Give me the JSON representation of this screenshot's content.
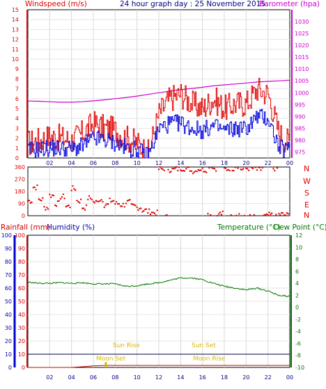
{
  "header": {
    "wind_label": "Windspeed (m/s)",
    "title": "24 hour graph day : 25 November 2015",
    "baro_label": "Barometer (hpa)"
  },
  "axes": {
    "wind_ticks": [
      "0",
      "1",
      "2",
      "3",
      "4",
      "5",
      "6",
      "7",
      "8",
      "9",
      "10",
      "11",
      "12",
      "13",
      "14",
      "15"
    ],
    "baro_ticks": [
      "975",
      "980",
      "985",
      "990",
      "995",
      "1000",
      "1005",
      "1010",
      "1015",
      "1020",
      "1025",
      "1030"
    ],
    "hour_ticks": [
      "02",
      "04",
      "06",
      "08",
      "10",
      "12",
      "14",
      "16",
      "18",
      "20",
      "22",
      "00"
    ],
    "dir_ticks": [
      "0",
      "90",
      "180",
      "270",
      "360"
    ],
    "compass": [
      "N",
      "W",
      "S",
      "E",
      "N"
    ],
    "hum_ticks": [
      "0",
      "10",
      "20",
      "30",
      "40",
      "50",
      "60",
      "70",
      "80",
      "90",
      "100"
    ],
    "temp_ticks": [
      "-10",
      "-8",
      "-6",
      "-4",
      "-2",
      "0",
      "2",
      "4",
      "6",
      "8",
      "10",
      "12"
    ]
  },
  "bottom_labels": {
    "rain": "Rainfall (mm)",
    "humidity": "Humidity (%)",
    "temp": "Temperature (°C)",
    "dew": "Dew Point (°C)"
  },
  "events": {
    "sun_rise": "Sun Rise",
    "sun_set": "Sun Set",
    "moon_set": "Moon Set",
    "moon_rise": "Moon Rise"
  },
  "colors": {
    "wind_gust": "#e00000",
    "wind_avg": "#0000dd",
    "barometer": "#cc00cc",
    "direction": "#dd0000",
    "temperature": "#007700",
    "humidity": "#0000aa",
    "rain": "#cc0000",
    "event": "#d6b800"
  },
  "chart_data": [
    {
      "type": "line",
      "title": "24 hour graph day : 25 November 2015",
      "xlabel": "",
      "ylabel": "Windspeed (m/s)",
      "x_hours": [
        0,
        1,
        2,
        3,
        4,
        5,
        6,
        7,
        8,
        9,
        10,
        11,
        12,
        13,
        14,
        15,
        16,
        17,
        18,
        19,
        20,
        21,
        22,
        23,
        24
      ],
      "ylim": [
        0,
        15
      ],
      "y2label": "Barometer (hpa)",
      "y2lim": [
        972.5,
        1035
      ],
      "series": [
        {
          "name": "Windspeed gust",
          "values": [
            1.5,
            1.8,
            2.2,
            2.0,
            1.8,
            2.5,
            3.5,
            3.0,
            2.8,
            2.0,
            1.5,
            0.5,
            4.5,
            6.0,
            6.5,
            5.5,
            5.0,
            6.0,
            5.0,
            5.5,
            5.5,
            7.0,
            6.5,
            2.5,
            1.5
          ]
        },
        {
          "name": "Windspeed average",
          "values": [
            0.8,
            0.9,
            1.0,
            1.0,
            0.9,
            1.2,
            2.0,
            1.8,
            1.5,
            1.0,
            0.8,
            0.2,
            3.0,
            3.5,
            3.5,
            3.0,
            2.8,
            3.2,
            2.8,
            3.0,
            3.0,
            4.2,
            4.0,
            1.0,
            0.8
          ]
        },
        {
          "name": "Barometer",
          "values": [
            996.5,
            996.4,
            996.2,
            996.0,
            996.0,
            996.2,
            996.6,
            997.0,
            997.5,
            998.0,
            998.6,
            999.3,
            1000.0,
            1000.7,
            1001.3,
            1001.8,
            1002.3,
            1002.9,
            1003.3,
            1003.7,
            1004.1,
            1004.5,
            1004.8,
            1005.0,
            1005.3
          ]
        }
      ]
    },
    {
      "type": "scatter",
      "ylabel": "Wind direction",
      "ylim": [
        0,
        360
      ],
      "x_hours": [
        0,
        0.5,
        1,
        1.5,
        2,
        2.5,
        3,
        3.5,
        4,
        4.5,
        5,
        5.5,
        6,
        6.5,
        7,
        7.5,
        8,
        8.5,
        9,
        9.5,
        10,
        10.5,
        11,
        11.5,
        12,
        12.5,
        13,
        13.5,
        14,
        14.5,
        15,
        15.5,
        16,
        16.5,
        17,
        17.5,
        18,
        18.5,
        19,
        19.5,
        20,
        20.5,
        21,
        21.5,
        22,
        22.5,
        23,
        23.5
      ],
      "values": [
        110,
        210,
        120,
        60,
        150,
        90,
        140,
        70,
        200,
        110,
        60,
        130,
        100,
        120,
        80,
        110,
        90,
        80,
        100,
        70,
        60,
        40,
        30,
        20,
        345,
        350,
        340,
        345,
        350,
        345,
        330,
        345,
        340,
        10,
        350,
        15,
        345,
        350,
        10,
        345,
        350,
        350,
        340,
        355,
        5,
        350,
        10,
        5
      ]
    },
    {
      "type": "line",
      "xlabel": "",
      "ylabel": "Humidity (%)",
      "ylim": [
        0,
        100
      ],
      "y2label": "Temperature (°C)",
      "y2lim": [
        -10,
        12
      ],
      "x_hours": [
        0,
        1,
        2,
        3,
        4,
        5,
        6,
        7,
        8,
        9,
        10,
        11,
        12,
        13,
        14,
        15,
        16,
        17,
        18,
        19,
        20,
        21,
        22,
        23,
        24
      ],
      "series": [
        {
          "name": "Temperature (°C)",
          "values": [
            4.2,
            4.0,
            4.0,
            4.1,
            4.0,
            4.1,
            3.9,
            3.9,
            3.9,
            3.5,
            3.6,
            3.9,
            4.1,
            4.5,
            4.9,
            4.9,
            4.6,
            4.0,
            3.5,
            3.2,
            2.9,
            3.2,
            2.7,
            2.0,
            1.8
          ]
        },
        {
          "name": "Rainfall (mm)",
          "values": [
            0,
            0,
            0,
            0,
            0,
            0.5,
            1.2,
            1.5,
            1.5,
            1.5,
            1.5,
            1.5,
            1.5,
            1.5,
            1.5,
            1.5,
            1.5,
            1.5,
            1.5,
            1.5,
            1.5,
            1.5,
            1.5,
            1.5,
            1.5
          ]
        },
        {
          "name": "Humidity (%)",
          "values": [
            10,
            10,
            10,
            10,
            10,
            10,
            10,
            10,
            10,
            10,
            10,
            10,
            10,
            10,
            10,
            10,
            10,
            10,
            10,
            10,
            10,
            10,
            10,
            10,
            10
          ]
        }
      ]
    }
  ]
}
